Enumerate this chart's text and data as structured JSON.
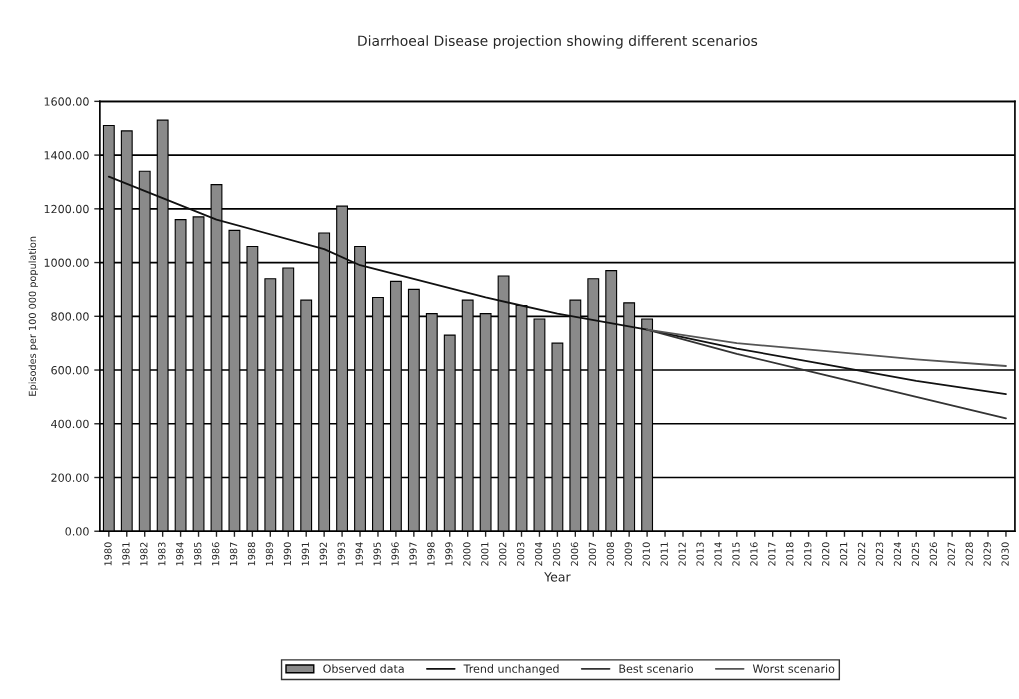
{
  "chart_data": {
    "type": "bar",
    "title": "Diarrhoeal Disease projection showing different scenarios",
    "xlabel": "Year",
    "ylabel": "Episodes per 100 000 population",
    "xlim": [
      1979.5,
      2030.5
    ],
    "xticks": [
      1980,
      1981,
      1982,
      1983,
      1984,
      1985,
      1986,
      1987,
      1988,
      1989,
      1990,
      1991,
      1992,
      1993,
      1994,
      1995,
      1996,
      1997,
      1998,
      1999,
      2000,
      2001,
      2002,
      2003,
      2004,
      2005,
      2006,
      2007,
      2008,
      2009,
      2010,
      2011,
      2012,
      2013,
      2014,
      2015,
      2016,
      2017,
      2018,
      2019,
      2020,
      2021,
      2022,
      2023,
      2024,
      2025,
      2026,
      2027,
      2028,
      2029,
      2030
    ],
    "ylim": [
      0,
      1600
    ],
    "yticks": [
      {
        "value": 0,
        "label": "0.00"
      },
      {
        "value": 200,
        "label": "200.00"
      },
      {
        "value": 400,
        "label": "400.00"
      },
      {
        "value": 600,
        "label": "600.00"
      },
      {
        "value": 800,
        "label": "800.00"
      },
      {
        "value": 1000,
        "label": "1000.00"
      },
      {
        "value": 1200,
        "label": "1200.00"
      },
      {
        "value": 1400,
        "label": "1400.00"
      },
      {
        "value": 1600,
        "label": "1600.00"
      }
    ],
    "grid": "y",
    "legend": "bottom",
    "series": [
      {
        "name": "Observed data",
        "color": "#8a8a8a",
        "x": [
          1980,
          1981,
          1982,
          1983,
          1984,
          1985,
          1986,
          1987,
          1988,
          1989,
          1990,
          1991,
          1992,
          1993,
          1994,
          1995,
          1996,
          1997,
          1998,
          1999,
          2000,
          2001,
          2002,
          2003,
          2004,
          2005,
          2006,
          2007,
          2008,
          2009,
          2010
        ],
        "values": [
          1510,
          1490,
          1340,
          1530,
          1160,
          1170,
          1290,
          1120,
          1060,
          940,
          980,
          860,
          1110,
          1210,
          1060,
          870,
          930,
          900,
          810,
          730,
          860,
          810,
          950,
          840,
          790,
          700,
          860,
          940,
          970,
          850,
          790
        ]
      },
      {
        "name": "Trend unchanged",
        "type": "line",
        "color": "#111111",
        "x": [
          1980,
          1983,
          1986,
          1992,
          1994,
          2001,
          2005,
          2010,
          2015,
          2020,
          2025,
          2030
        ],
        "values": [
          1320,
          1240,
          1160,
          1050,
          990,
          870,
          810,
          750,
          680,
          620,
          560,
          510
        ]
      },
      {
        "name": "Best scenario",
        "type": "line",
        "color": "#333333",
        "x": [
          2010,
          2015,
          2020,
          2025,
          2030
        ],
        "values": [
          750,
          660,
          580,
          500,
          420
        ]
      },
      {
        "name": "Worst scenario",
        "type": "line",
        "color": "#555555",
        "x": [
          2010,
          2015,
          2020,
          2025,
          2030
        ],
        "values": [
          750,
          700,
          670,
          640,
          615
        ]
      }
    ]
  }
}
